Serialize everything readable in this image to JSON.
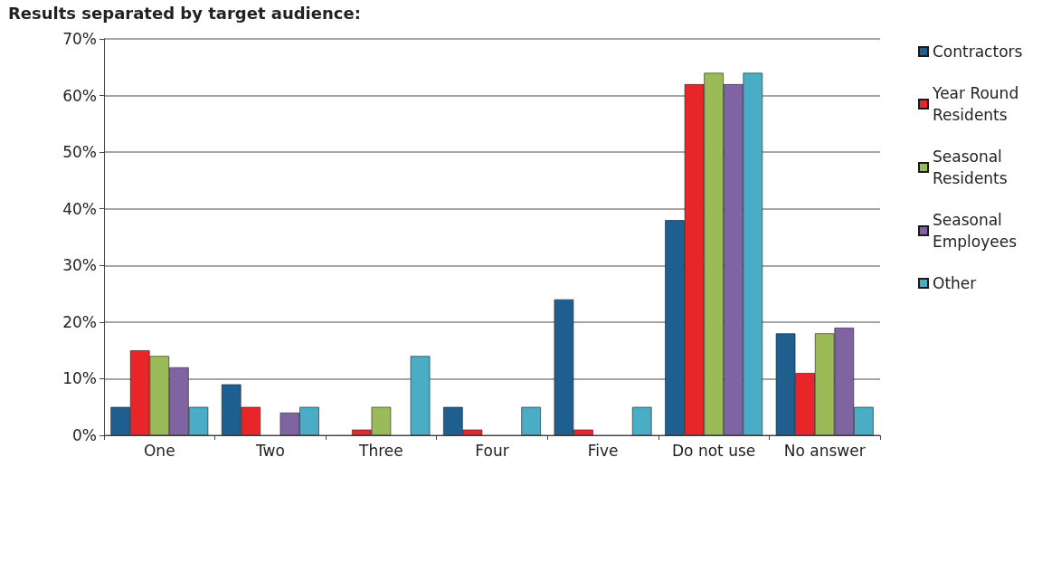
{
  "chart_data": {
    "type": "bar",
    "title": "Results separated by target audience:",
    "categories": [
      "One",
      "Two",
      "Three",
      "Four",
      "Five",
      "Do not use",
      "No answer"
    ],
    "series": [
      {
        "name": "Contractors",
        "color": "#1f5f8f",
        "values": [
          5,
          9,
          null,
          5,
          24,
          38,
          18
        ]
      },
      {
        "name": "Year Round Residents",
        "color": "#e8262a",
        "values": [
          15,
          5,
          1,
          1,
          1,
          62,
          11
        ]
      },
      {
        "name": "Seasonal Residents",
        "color": "#9bbb59",
        "values": [
          14,
          null,
          5,
          null,
          null,
          64,
          18
        ]
      },
      {
        "name": "Seasonal Employees",
        "color": "#8064a2",
        "values": [
          12,
          4,
          null,
          null,
          null,
          62,
          19
        ]
      },
      {
        "name": "Other",
        "color": "#4bacc6",
        "values": [
          5,
          5,
          14,
          5,
          5,
          64,
          5
        ]
      }
    ],
    "ylim": [
      0,
      70
    ],
    "yticks": [
      {
        "value": 0,
        "label": "0%"
      },
      {
        "value": 10,
        "label": "10%"
      },
      {
        "value": 20,
        "label": "20%"
      },
      {
        "value": 30,
        "label": "30%"
      },
      {
        "value": 40,
        "label": "40%"
      },
      {
        "value": 50,
        "label": "50%"
      },
      {
        "value": 60,
        "label": "60%"
      },
      {
        "value": 70,
        "label": "70%"
      }
    ],
    "grid": "y",
    "legend": "right"
  }
}
